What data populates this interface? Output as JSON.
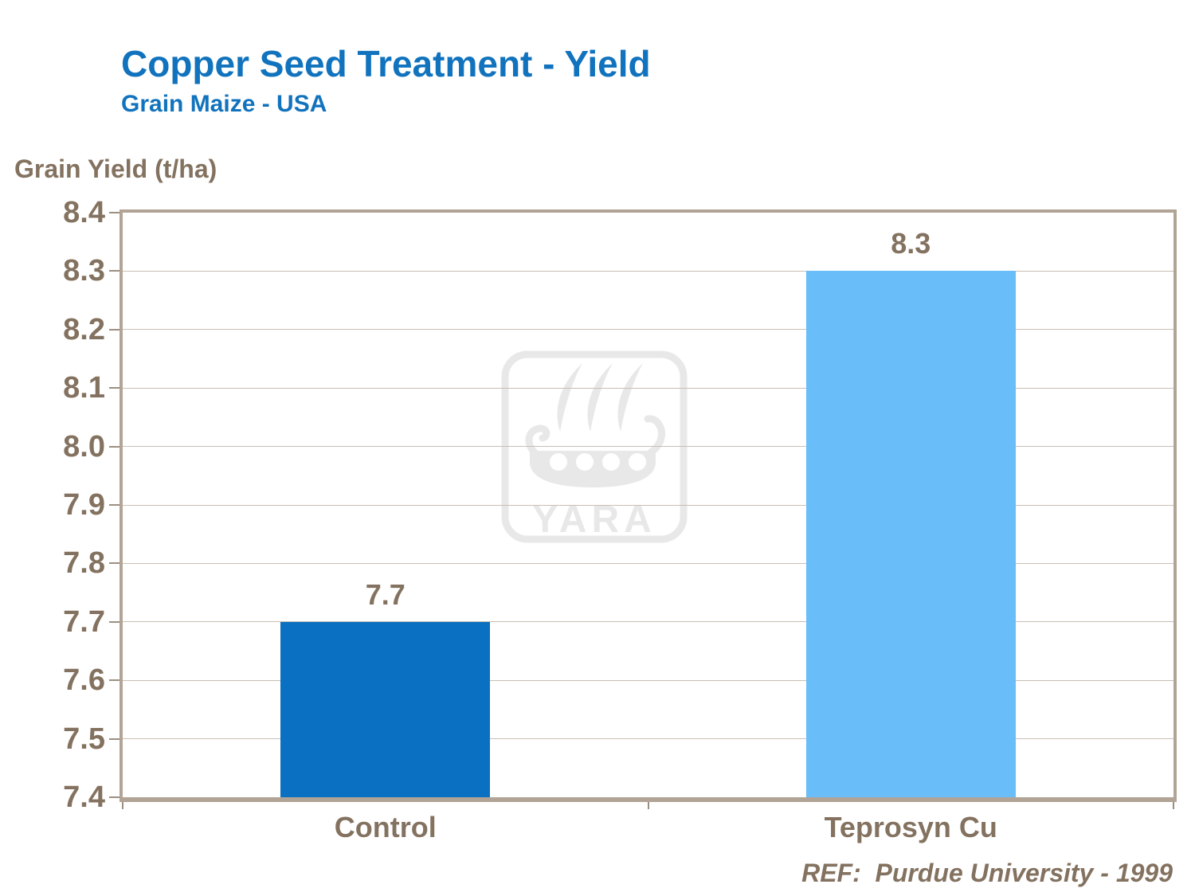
{
  "header": {
    "title": "Copper Seed Treatment - Yield",
    "subtitle": "Grain Maize - USA"
  },
  "watermark": {
    "brand": "YARA"
  },
  "footer": {
    "reference": "REF:  Purdue University - 1999"
  },
  "colors": {
    "title_blue": "#1173bd",
    "text_brown": "#847260",
    "axis_border": "#b1a496",
    "gridline": "#c9bfb3",
    "tick": "#9c8f80",
    "watermark_gray": "#e8e8e8",
    "bar_control": "#0a70c2",
    "bar_teprosyn": "#69bdf9"
  },
  "chart_data": {
    "type": "bar",
    "title": "Copper Seed Treatment - Yield",
    "subtitle": "Grain Maize - USA",
    "ylabel": "Grain Yield (t/ha)",
    "xlabel": "",
    "categories": [
      "Control",
      "Teprosyn Cu"
    ],
    "values": [
      7.7,
      8.3
    ],
    "data_labels": [
      "7.7",
      "8.3"
    ],
    "bar_colors": [
      "#0a70c2",
      "#69bdf9"
    ],
    "ylim": [
      7.4,
      8.4
    ],
    "ytick_step": 0.1,
    "yticks": [
      8.4,
      8.3,
      8.2,
      8.1,
      8.0,
      7.9,
      7.8,
      7.7,
      7.6,
      7.5,
      7.4
    ],
    "ytick_labels": [
      "8.4",
      "8.3",
      "8.2",
      "8.1",
      "8.0",
      "7.9",
      "7.8",
      "7.7",
      "7.6",
      "7.5",
      "7.4"
    ],
    "grid": true,
    "legend": "none",
    "reference": "REF:  Purdue University - 1999"
  }
}
